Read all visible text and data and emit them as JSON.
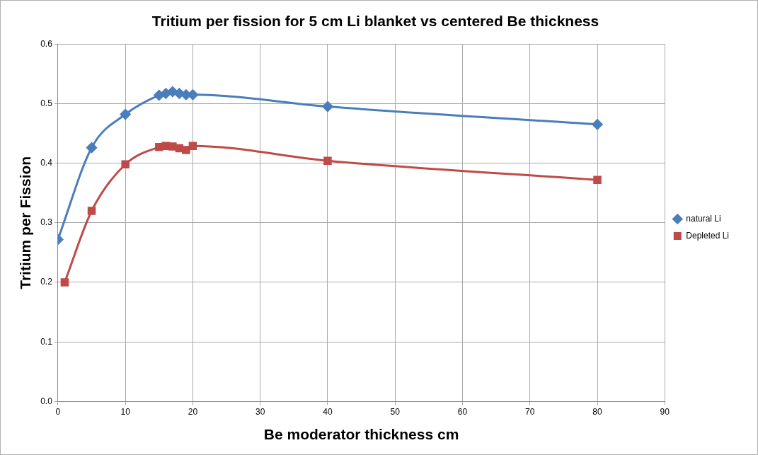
{
  "chart_data": {
    "type": "line",
    "title": "Tritium per fission for 5 cm Li blanket vs centered Be thickness",
    "xlabel": "Be moderator thickness cm",
    "ylabel": "Tritium per Fission",
    "xlim": [
      0,
      90
    ],
    "xticks": [
      0,
      10,
      20,
      30,
      40,
      50,
      60,
      70,
      80,
      90
    ],
    "ylim": [
      0,
      0.6
    ],
    "yticks": [
      {
        "value": 0,
        "label": "0.0"
      },
      0.1,
      0.2,
      0.3,
      0.4,
      0.5,
      0.6
    ],
    "grid": true,
    "legend": "right",
    "line_style": "solid",
    "series": [
      {
        "name": "natural Li",
        "color": "#4a7ebb",
        "marker": "diamond",
        "x": [
          0,
          5,
          10,
          15,
          16,
          17,
          18,
          19,
          20,
          40,
          80
        ],
        "values": [
          0.272,
          0.426,
          0.482,
          0.514,
          0.517,
          0.52,
          0.517,
          0.515,
          0.515,
          0.495,
          0.465
        ]
      },
      {
        "name": "Depleted Li",
        "color": "#be4b48",
        "marker": "square",
        "x": [
          1,
          5,
          10,
          15,
          16,
          17,
          18,
          19,
          20,
          40,
          80
        ],
        "values": [
          0.2,
          0.32,
          0.398,
          0.427,
          0.429,
          0.428,
          0.425,
          0.422,
          0.429,
          0.404,
          0.372
        ]
      }
    ]
  }
}
